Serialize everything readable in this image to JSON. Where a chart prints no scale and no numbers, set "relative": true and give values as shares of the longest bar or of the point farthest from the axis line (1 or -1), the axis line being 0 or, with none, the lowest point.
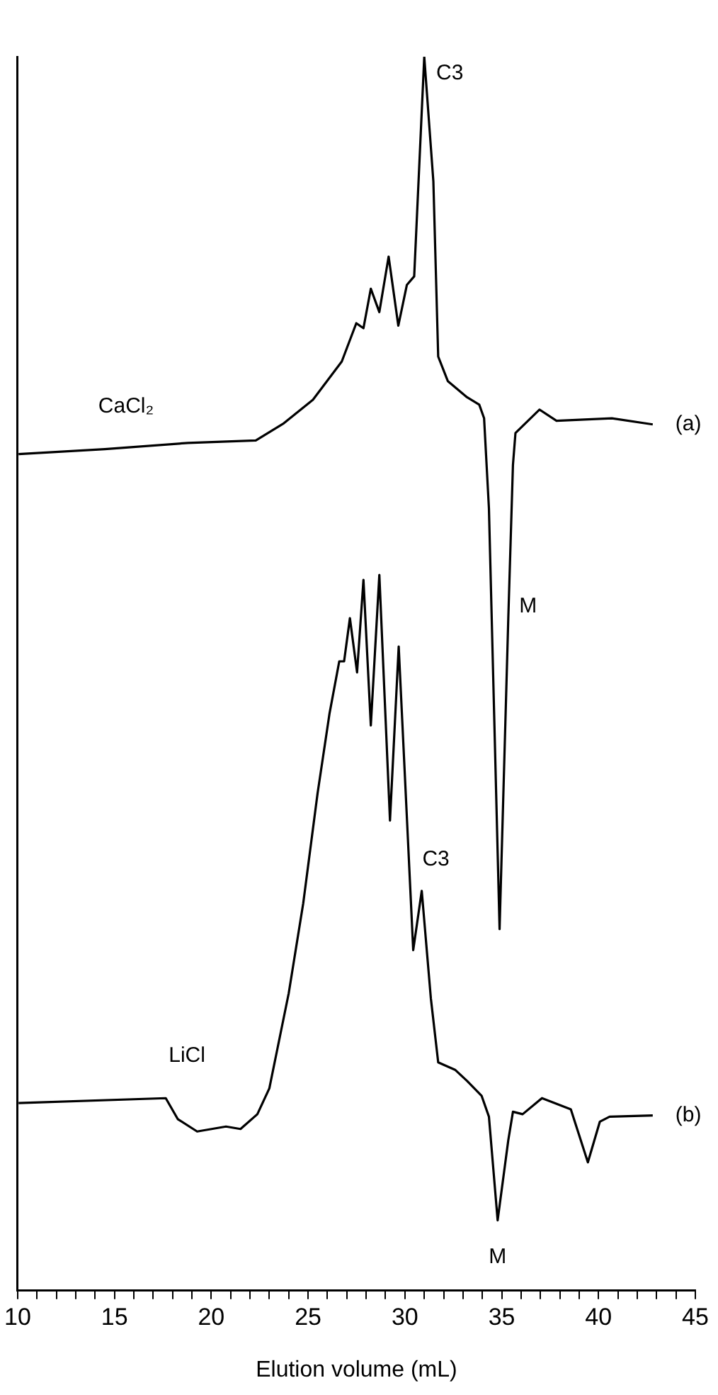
{
  "chart_data": {
    "type": "line",
    "relative": true,
    "xlabel": "Elution volume (mL)",
    "xlim": [
      10,
      45
    ],
    "xticks": [
      10,
      {
        "value": 11,
        "label": null
      },
      {
        "value": 12,
        "label": null
      },
      {
        "value": 13,
        "label": null
      },
      {
        "value": 14,
        "label": null
      },
      15,
      {
        "value": 16,
        "label": null
      },
      {
        "value": 17,
        "label": null
      },
      {
        "value": 18,
        "label": null
      },
      {
        "value": 19,
        "label": null
      },
      20,
      {
        "value": 21,
        "label": null
      },
      {
        "value": 22,
        "label": null
      },
      {
        "value": 23,
        "label": null
      },
      {
        "value": 24,
        "label": null
      },
      25,
      {
        "value": 26,
        "label": null
      },
      {
        "value": 27,
        "label": null
      },
      {
        "value": 28,
        "label": null
      },
      {
        "value": 29,
        "label": null
      },
      30,
      {
        "value": 31,
        "label": null
      },
      {
        "value": 32,
        "label": null
      },
      {
        "value": 33,
        "label": null
      },
      {
        "value": 34,
        "label": null
      },
      35,
      {
        "value": 36,
        "label": null
      },
      {
        "value": 37,
        "label": null
      },
      {
        "value": 38,
        "label": null
      },
      {
        "value": 39,
        "label": null
      },
      40,
      {
        "value": 41,
        "label": null
      },
      {
        "value": 42,
        "label": null
      },
      {
        "value": 43,
        "label": null
      },
      {
        "value": 44,
        "label": null
      },
      45
    ],
    "tick_labels": "x",
    "grid": false,
    "legend": false,
    "marker": "none",
    "line_style": "solid",
    "series": [
      {
        "name": "CaCl₂",
        "color": "#000000",
        "x": [
          10.05,
          14.5,
          18.8,
          22.3,
          23.75,
          25.25,
          26.74,
          27.49,
          27.86,
          28.24,
          28.68,
          29.16,
          29.66,
          30.1,
          30.48,
          31.0,
          31.47,
          31.72,
          32.22,
          33.21,
          33.84,
          34.09,
          34.34,
          34.89,
          35.34,
          35.58,
          35.71,
          36.95,
          37.83,
          40.69,
          42.8
        ],
        "values": [
          0.678,
          0.682,
          0.687,
          0.689,
          0.703,
          0.722,
          0.753,
          0.784,
          0.78,
          0.812,
          0.793,
          0.838,
          0.782,
          0.815,
          0.822,
          1.0,
          0.899,
          0.757,
          0.737,
          0.724,
          0.718,
          0.707,
          0.634,
          0.293,
          0.545,
          0.669,
          0.695,
          0.714,
          0.705,
          0.707,
          0.702
        ]
      },
      {
        "name": "LiCl",
        "color": "#000000",
        "x": [
          10.05,
          17.65,
          18.27,
          19.27,
          20.76,
          21.51,
          22.38,
          23.0,
          24.0,
          24.75,
          25.49,
          26.11,
          26.61,
          26.86,
          27.16,
          27.53,
          27.86,
          28.24,
          28.68,
          29.23,
          29.68,
          30.43,
          30.87,
          31.34,
          31.72,
          32.59,
          33.21,
          33.96,
          34.34,
          34.79,
          35.34,
          35.58,
          36.08,
          37.08,
          38.57,
          39.45,
          40.07,
          40.57,
          42.8
        ],
        "values": [
          0.152,
          0.156,
          0.139,
          0.129,
          0.133,
          0.131,
          0.143,
          0.164,
          0.241,
          0.314,
          0.403,
          0.468,
          0.51,
          0.51,
          0.545,
          0.501,
          0.576,
          0.458,
          0.58,
          0.381,
          0.522,
          0.276,
          0.324,
          0.237,
          0.185,
          0.179,
          0.17,
          0.158,
          0.141,
          0.057,
          0.122,
          0.145,
          0.143,
          0.156,
          0.147,
          0.104,
          0.137,
          0.141,
          0.142
        ]
      }
    ],
    "annotations": [
      "(a)",
      "(b)",
      {
        "text": "C3",
        "x": 31.0,
        "y": 1.0
      },
      {
        "text": "M",
        "x": 35.34,
        "y": 0.545
      },
      {
        "text": "C3",
        "x": 30.87,
        "y": 0.324
      },
      {
        "text": "M",
        "x": 34.79,
        "y": 0.057
      }
    ]
  }
}
